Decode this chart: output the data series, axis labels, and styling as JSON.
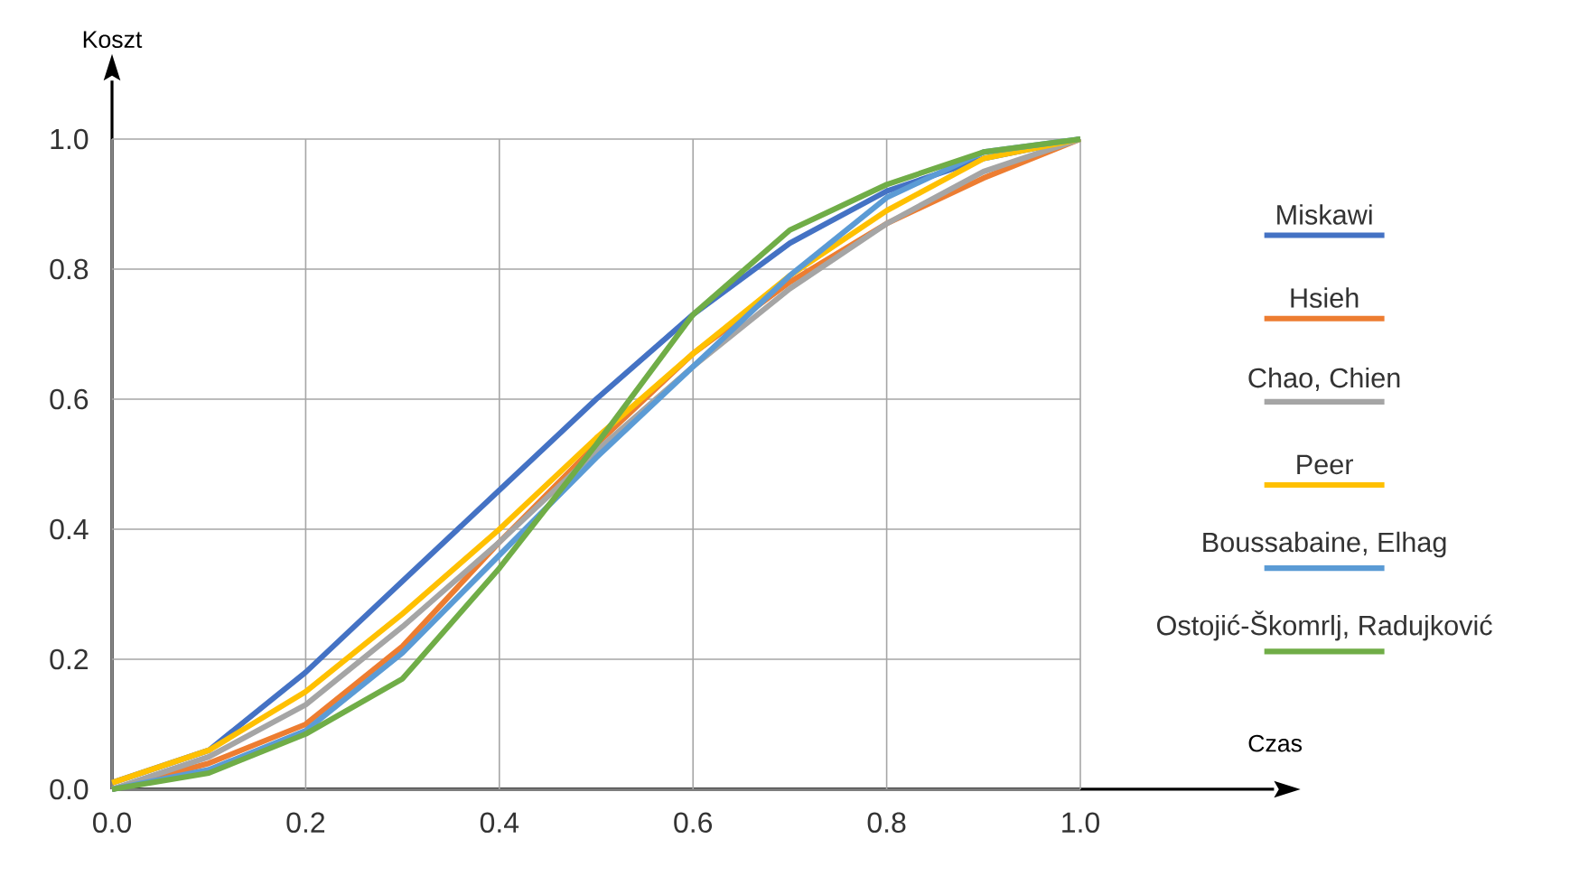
{
  "chart_data": {
    "type": "line",
    "xlabel": "Czas",
    "ylabel": "Koszt",
    "x": [
      0,
      0.1,
      0.2,
      0.3,
      0.4,
      0.5,
      0.6,
      0.7,
      0.8,
      0.9,
      1.0
    ],
    "series": [
      {
        "name": "Miskawi",
        "color": "#4472c4",
        "values": [
          0.01,
          0.06,
          0.18,
          0.32,
          0.46,
          0.6,
          0.73,
          0.84,
          0.92,
          0.97,
          1.0
        ]
      },
      {
        "name": "Hsieh",
        "color": "#ed7d31",
        "values": [
          0,
          0.04,
          0.1,
          0.22,
          0.38,
          0.53,
          0.67,
          0.78,
          0.87,
          0.94,
          1.0
        ]
      },
      {
        "name": "Chao, Chien",
        "color": "#a5a5a5",
        "values": [
          0,
          0.05,
          0.13,
          0.25,
          0.38,
          0.52,
          0.65,
          0.77,
          0.87,
          0.95,
          1.0
        ]
      },
      {
        "name": "Peer",
        "color": "#ffc000",
        "values": [
          0.01,
          0.06,
          0.15,
          0.27,
          0.4,
          0.54,
          0.67,
          0.79,
          0.89,
          0.97,
          1.0
        ]
      },
      {
        "name": "Boussabaine, Elhag",
        "color": "#5b9bd5",
        "values": [
          0,
          0.03,
          0.09,
          0.21,
          0.36,
          0.51,
          0.65,
          0.79,
          0.91,
          0.98,
          1.0
        ]
      },
      {
        "name": "Ostojić-Škomrlj, Radujković",
        "color": "#70ad47",
        "values": [
          0,
          0.025,
          0.085,
          0.17,
          0.34,
          0.53,
          0.73,
          0.86,
          0.93,
          0.98,
          1.0
        ]
      }
    ],
    "xlim": [
      0,
      1.2
    ],
    "ylim": [
      0,
      1.09
    ],
    "xticks": [
      {
        "value": 0,
        "label": "0.0"
      },
      0.2,
      0.4,
      0.6,
      0.8,
      {
        "value": 1.0,
        "label": "1.0"
      }
    ],
    "yticks": [
      {
        "value": 0,
        "label": "0.0"
      },
      0.2,
      0.4,
      0.6,
      0.8,
      {
        "value": 1.0,
        "label": "1.0"
      }
    ],
    "grid": true,
    "legend": "right"
  }
}
